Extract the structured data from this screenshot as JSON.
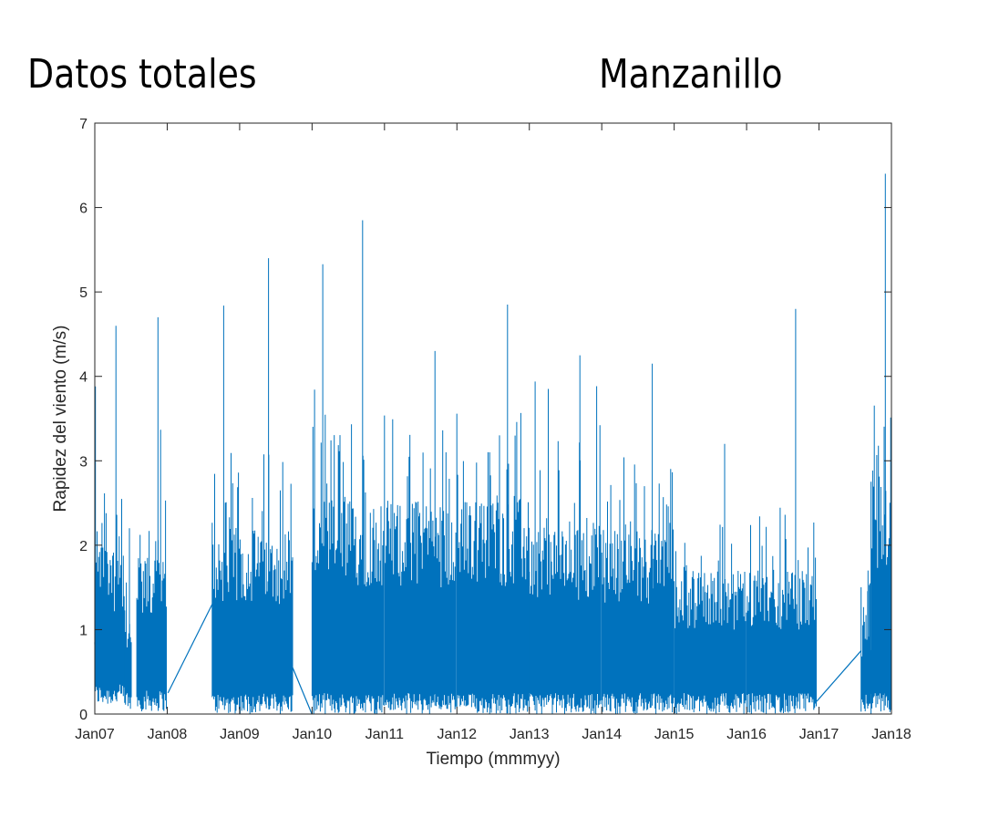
{
  "titles": {
    "left": "Datos totales",
    "right": "Manzanillo"
  },
  "chart_data": {
    "type": "line",
    "xlabel": "Tiempo (mmmyy)",
    "ylabel": "Rapidez del viento (m/s)",
    "x_ticks": [
      "Jan07",
      "Jan08",
      "Jan09",
      "Jan10",
      "Jan11",
      "Jan12",
      "Jan13",
      "Jan14",
      "Jan15",
      "Jan16",
      "Jan17",
      "Jan18"
    ],
    "y_ticks": [
      "0",
      "1",
      "2",
      "3",
      "4",
      "5",
      "6",
      "7"
    ],
    "xlim": [
      "2007-01-01",
      "2018-01-01"
    ],
    "ylim": [
      0,
      7
    ],
    "grid": false,
    "line_color": "#0072bd",
    "series": [
      {
        "segments": [
          {
            "start": "2007-01-01",
            "end": "2007-01-04",
            "min": 0.85,
            "max": 2.6,
            "typ": 1.6
          },
          {
            "start": "2007-01-04",
            "end": "2007-06-01",
            "min": 0.1,
            "max": 4.6,
            "typ": 2.4
          },
          {
            "start": "2007-06-01",
            "end": "2007-07-05",
            "min": 0.03,
            "max": 2.2,
            "typ": 1.3
          },
          {
            "start": "2007-08-01",
            "end": "2007-12-31",
            "min": 0.03,
            "max": 4.7,
            "typ": 2.2
          },
          {
            "start": "2008-08-15",
            "end": "2009-09-25",
            "min": 0.0,
            "max": 5.4,
            "typ": 2.6
          },
          {
            "start": "2010-01-01",
            "end": "2010-12-31",
            "min": 0.0,
            "max": 5.85,
            "typ": 3.0
          },
          {
            "start": "2011-01-01",
            "end": "2011-12-31",
            "min": 0.0,
            "max": 4.3,
            "typ": 3.0
          },
          {
            "start": "2012-01-01",
            "end": "2012-12-31",
            "min": 0.0,
            "max": 4.85,
            "typ": 3.0
          },
          {
            "start": "2013-01-01",
            "end": "2013-12-31",
            "min": 0.0,
            "max": 4.25,
            "typ": 2.7
          },
          {
            "start": "2014-01-01",
            "end": "2014-12-31",
            "min": 0.0,
            "max": 4.15,
            "typ": 2.6
          },
          {
            "start": "2015-01-01",
            "end": "2015-12-31",
            "min": 0.0,
            "max": 3.2,
            "typ": 2.0
          },
          {
            "start": "2016-01-01",
            "end": "2016-12-20",
            "min": 0.0,
            "max": 4.8,
            "typ": 2.0
          },
          {
            "start": "2017-08-01",
            "end": "2017-09-20",
            "min": 0.0,
            "max": 1.7,
            "typ": 1.3
          },
          {
            "start": "2017-09-20",
            "end": "2018-01-01",
            "min": 0.0,
            "max": 6.4,
            "typ": 3.4
          }
        ],
        "connectors": [
          {
            "x": [
              "2007-01-01",
              "2007-01-04"
            ],
            "y": [
              0.85,
              0.6
            ]
          },
          {
            "x": [
              "2008-01-05",
              "2008-08-15"
            ],
            "y": [
              0.25,
              1.3
            ]
          },
          {
            "x": [
              "2009-09-25",
              "2009-12-31"
            ],
            "y": [
              0.55,
              0.0
            ]
          },
          {
            "x": [
              "2016-12-20",
              "2017-08-01"
            ],
            "y": [
              0.15,
              0.75
            ]
          }
        ]
      }
    ]
  }
}
